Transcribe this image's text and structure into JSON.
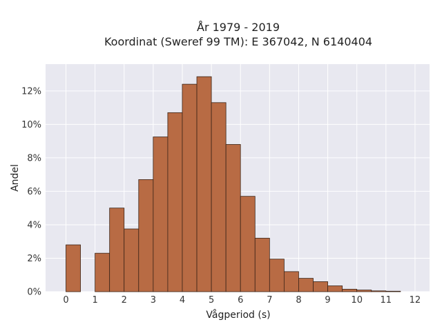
{
  "chart_data": {
    "type": "bar",
    "title_line1": "År 1979 - 2019",
    "title_line2": "Koordinat (Sweref 99 TM): E 367042, N 6140404",
    "xlabel": "Vågperiod (s)",
    "ylabel": "Andel",
    "xlim": [
      -0.7,
      12.5
    ],
    "ylim": [
      0,
      13.6
    ],
    "bin_width": 0.5,
    "x_ticks": [
      0,
      1,
      2,
      3,
      4,
      5,
      6,
      7,
      8,
      9,
      10,
      11,
      12
    ],
    "x_tick_labels": [
      "0",
      "1",
      "2",
      "3",
      "4",
      "5",
      "6",
      "7",
      "8",
      "9",
      "10",
      "11",
      "12"
    ],
    "y_ticks": [
      0,
      2,
      4,
      6,
      8,
      10,
      12
    ],
    "y_tick_labels": [
      "0%",
      "2%",
      "4%",
      "6%",
      "8%",
      "10%",
      "12%"
    ],
    "grid": true,
    "bar_color": "#b86b44",
    "bar_edge_color": "#3a2418",
    "background_color": "#e8e8f0",
    "bins": [
      {
        "start": 0.0,
        "value": 2.8
      },
      {
        "start": 0.5,
        "value": 0.0
      },
      {
        "start": 1.0,
        "value": 2.3
      },
      {
        "start": 1.5,
        "value": 5.0
      },
      {
        "start": 2.0,
        "value": 3.75
      },
      {
        "start": 2.5,
        "value": 6.7
      },
      {
        "start": 3.0,
        "value": 9.25
      },
      {
        "start": 3.5,
        "value": 10.7
      },
      {
        "start": 4.0,
        "value": 12.4
      },
      {
        "start": 4.5,
        "value": 12.85
      },
      {
        "start": 5.0,
        "value": 11.3
      },
      {
        "start": 5.5,
        "value": 8.8
      },
      {
        "start": 6.0,
        "value": 5.7
      },
      {
        "start": 6.5,
        "value": 3.2
      },
      {
        "start": 7.0,
        "value": 1.95
      },
      {
        "start": 7.5,
        "value": 1.2
      },
      {
        "start": 8.0,
        "value": 0.8
      },
      {
        "start": 8.5,
        "value": 0.6
      },
      {
        "start": 9.0,
        "value": 0.35
      },
      {
        "start": 9.5,
        "value": 0.15
      },
      {
        "start": 10.0,
        "value": 0.1
      },
      {
        "start": 10.5,
        "value": 0.05
      },
      {
        "start": 11.0,
        "value": 0.03
      }
    ]
  }
}
